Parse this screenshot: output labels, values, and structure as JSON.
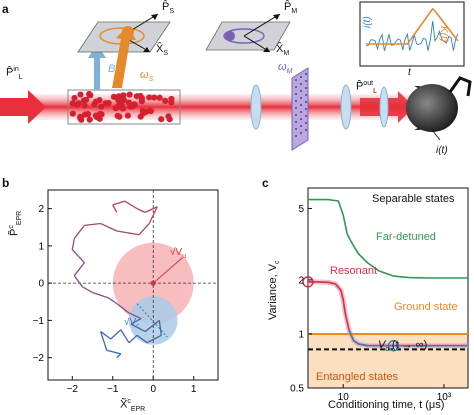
{
  "panels": {
    "a": "a",
    "b": "b",
    "c": "c"
  },
  "panel_a": {
    "p_in": "P̂",
    "p_in_sup": "in",
    "p_in_sub": "L",
    "p_s": "P̂",
    "p_s_sub": "S",
    "x_s": "X̂",
    "x_s_sub": "S",
    "b_field": "B",
    "omega_s": "ω",
    "omega_s_sub": "S",
    "p_m": "P̂",
    "p_m_sub": "M",
    "x_m": "X̂",
    "x_m_sub": "M",
    "omega_m": "ω",
    "omega_m_sub": "M",
    "p_out": "P̂",
    "p_out_sup": "out",
    "p_out_sub": "L",
    "inset_i": "i(t)",
    "inset_k": "K(t)",
    "inset_t": "t",
    "det_i": "i(t)",
    "colors": {
      "beam": "#e8303c",
      "atoms": "#d62030",
      "spin_arrow": "#e58a2a",
      "b_arrow": "#7fb0d8",
      "membrane": "#7a5fb5",
      "inset_blue": "#2f7fc1",
      "inset_orange": "#e9892a"
    }
  },
  "chart_data": [
    {
      "type": "scatter",
      "panel": "b",
      "xlabel": "X̃",
      "xlabel_sup": "c",
      "xlabel_sub": "EPR",
      "ylabel": "P̃",
      "ylabel_sup": "c",
      "ylabel_sub": "EPR",
      "xlim": [
        -2.6,
        1.6
      ],
      "ylim": [
        -2.6,
        2.5
      ],
      "xticks": [
        -2,
        -1,
        0,
        1
      ],
      "yticks": [
        -2,
        -1,
        0,
        1,
        2
      ],
      "annotations": [
        {
          "text": "√V",
          "sub": "u"
        },
        {
          "text": "√V",
          "sub": "c"
        }
      ],
      "ellipses": [
        {
          "name": "unconditional",
          "center": [
            0,
            0
          ],
          "radius": 1.0,
          "color": "#f4a7a9"
        },
        {
          "name": "conditional",
          "center": [
            0,
            -1.0
          ],
          "radius": 0.6,
          "color": "#a8cde9"
        }
      ],
      "trajectory": [
        [
          -0.9,
          1.9
        ],
        [
          -1.0,
          2.1
        ],
        [
          -0.7,
          2.2
        ],
        [
          -0.4,
          2.0
        ],
        [
          -0.2,
          1.9
        ],
        [
          0.1,
          2.05
        ],
        [
          -0.1,
          1.6
        ],
        [
          -0.35,
          1.3
        ],
        [
          -0.9,
          1.4
        ],
        [
          -1.3,
          1.6
        ],
        [
          -1.7,
          1.55
        ],
        [
          -1.95,
          1.2
        ],
        [
          -2.0,
          0.9
        ],
        [
          -1.7,
          0.55
        ],
        [
          -1.95,
          0.2
        ],
        [
          -1.75,
          -0.1
        ],
        [
          -1.5,
          -0.25
        ],
        [
          -1.1,
          -0.4
        ],
        [
          -0.9,
          -0.55
        ],
        [
          -0.6,
          -0.8
        ],
        [
          -0.3,
          -0.95
        ],
        [
          -0.55,
          -1.1
        ],
        [
          -0.2,
          -1.3
        ],
        [
          0.15,
          -1.0
        ],
        [
          0.2,
          -1.4
        ],
        [
          -0.15,
          -1.6
        ],
        [
          -0.4,
          -1.4
        ],
        [
          -0.6,
          -1.6
        ],
        [
          -0.8,
          -1.25
        ],
        [
          -1.05,
          -1.5
        ],
        [
          -1.3,
          -1.3
        ],
        [
          -1.15,
          -1.8
        ],
        [
          -0.8,
          -1.9
        ],
        [
          -0.9,
          -2.0
        ]
      ],
      "end_point": [
        0,
        0
      ]
    },
    {
      "type": "line",
      "panel": "c",
      "xlabel": "Conditioning time, t (μs)",
      "ylabel": "Variance, V",
      "ylabel_sub": "c",
      "xscale": "log",
      "yscale": "log",
      "xlim": [
        2,
        3000
      ],
      "ylim": [
        0.5,
        6.5
      ],
      "xtick_labels": [
        "10",
        "10³"
      ],
      "xticks": [
        10,
        1000
      ],
      "ytick_labels": [
        "0.5",
        "1",
        "2",
        "5"
      ],
      "yticks": [
        0.5,
        1,
        2,
        5
      ],
      "region_labels": [
        "Separable states",
        "Entangled states"
      ],
      "series": [
        {
          "name": "Far-detuned",
          "color": "#2e9a53",
          "x": [
            2,
            5,
            8,
            10,
            12,
            15,
            20,
            30,
            50,
            100,
            200,
            500,
            1000,
            3000
          ],
          "y": [
            5.6,
            5.6,
            5.5,
            4.6,
            3.6,
            3.2,
            2.8,
            2.5,
            2.25,
            2.1,
            2.06,
            2.05,
            2.05,
            2.05
          ]
        },
        {
          "name": "Resonant",
          "color": "#d2314a",
          "x": [
            2,
            3,
            5,
            7,
            9,
            10,
            11,
            13,
            16,
            20,
            30,
            60,
            100,
            300,
            1000,
            3000
          ],
          "y": [
            1.95,
            1.95,
            1.94,
            1.9,
            1.75,
            1.55,
            1.3,
            1.05,
            0.92,
            0.88,
            0.86,
            0.86,
            0.86,
            0.86,
            0.86,
            0.86
          ]
        },
        {
          "name": "Ground state",
          "color": "#e9892a",
          "x": [
            2,
            3000
          ],
          "y": [
            1.0,
            1.0
          ]
        }
      ],
      "asymptote": {
        "label": "V",
        "label_sub": "c",
        "label_arg": "(t → ∞)",
        "value": 0.82
      },
      "markers": [
        {
          "x": 2,
          "y": 1.95,
          "color": "#d2314a"
        },
        {
          "x": 100,
          "y": 0.86,
          "color": "#2f7fc1"
        }
      ]
    }
  ]
}
